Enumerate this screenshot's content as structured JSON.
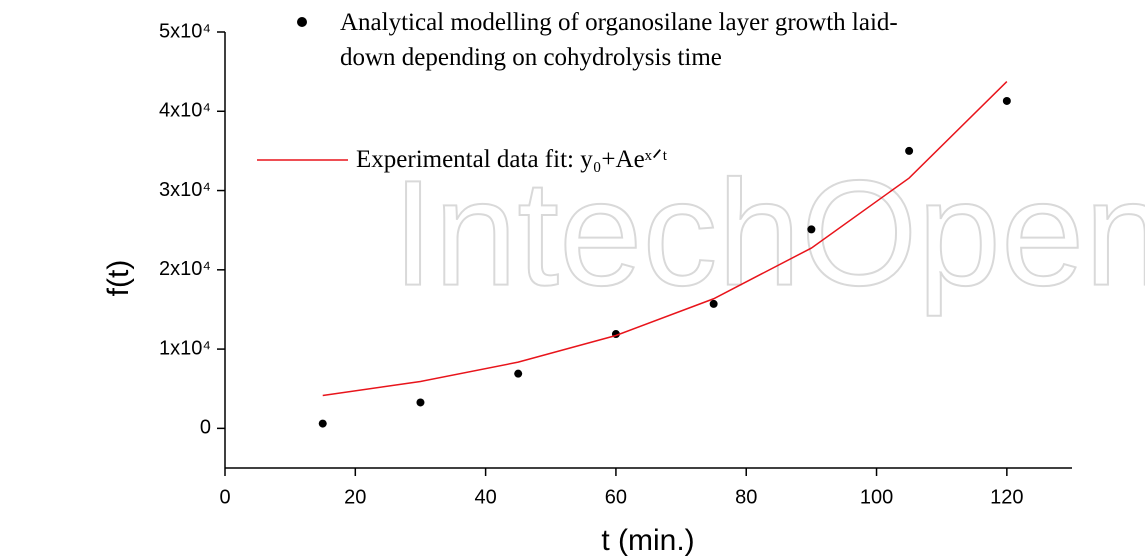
{
  "chart_data": {
    "type": "scatter",
    "watermark": "IntechOpen",
    "xlabel": "t (min.)",
    "ylabel": "f(t)",
    "xlim": [
      0,
      130
    ],
    "xticks": [
      0,
      20,
      40,
      60,
      80,
      100,
      120
    ],
    "ylim": [
      -5000,
      50000
    ],
    "yticks": [
      0,
      {
        "value": 10000,
        "label": "1x10⁴"
      },
      {
        "value": 20000,
        "label": "2x10⁴"
      },
      {
        "value": 30000,
        "label": "3x10⁴"
      },
      {
        "value": 40000,
        "label": "4x10⁴"
      },
      {
        "value": 50000,
        "label": "5x10⁴"
      }
    ],
    "series": [
      {
        "name": "Analytical modelling of organosilane layer growth laid-down depending on cohydrolysis time",
        "color": "#000000",
        "style": "points",
        "x": [
          15,
          30,
          45,
          60,
          75,
          90,
          105,
          120
        ],
        "values": [
          600,
          3270,
          6900,
          11900,
          15700,
          25100,
          35000,
          41300
        ]
      },
      {
        "name": "Experimental data fit: y₀+Aeˣᐟᵗ",
        "color": "#e8141b",
        "style": "line",
        "x": [
          15,
          30,
          45,
          60,
          75,
          90,
          105,
          120
        ],
        "values": [
          4150,
          5915,
          8352,
          11713,
          16350,
          22746,
          31576,
          43748
        ]
      }
    ]
  }
}
